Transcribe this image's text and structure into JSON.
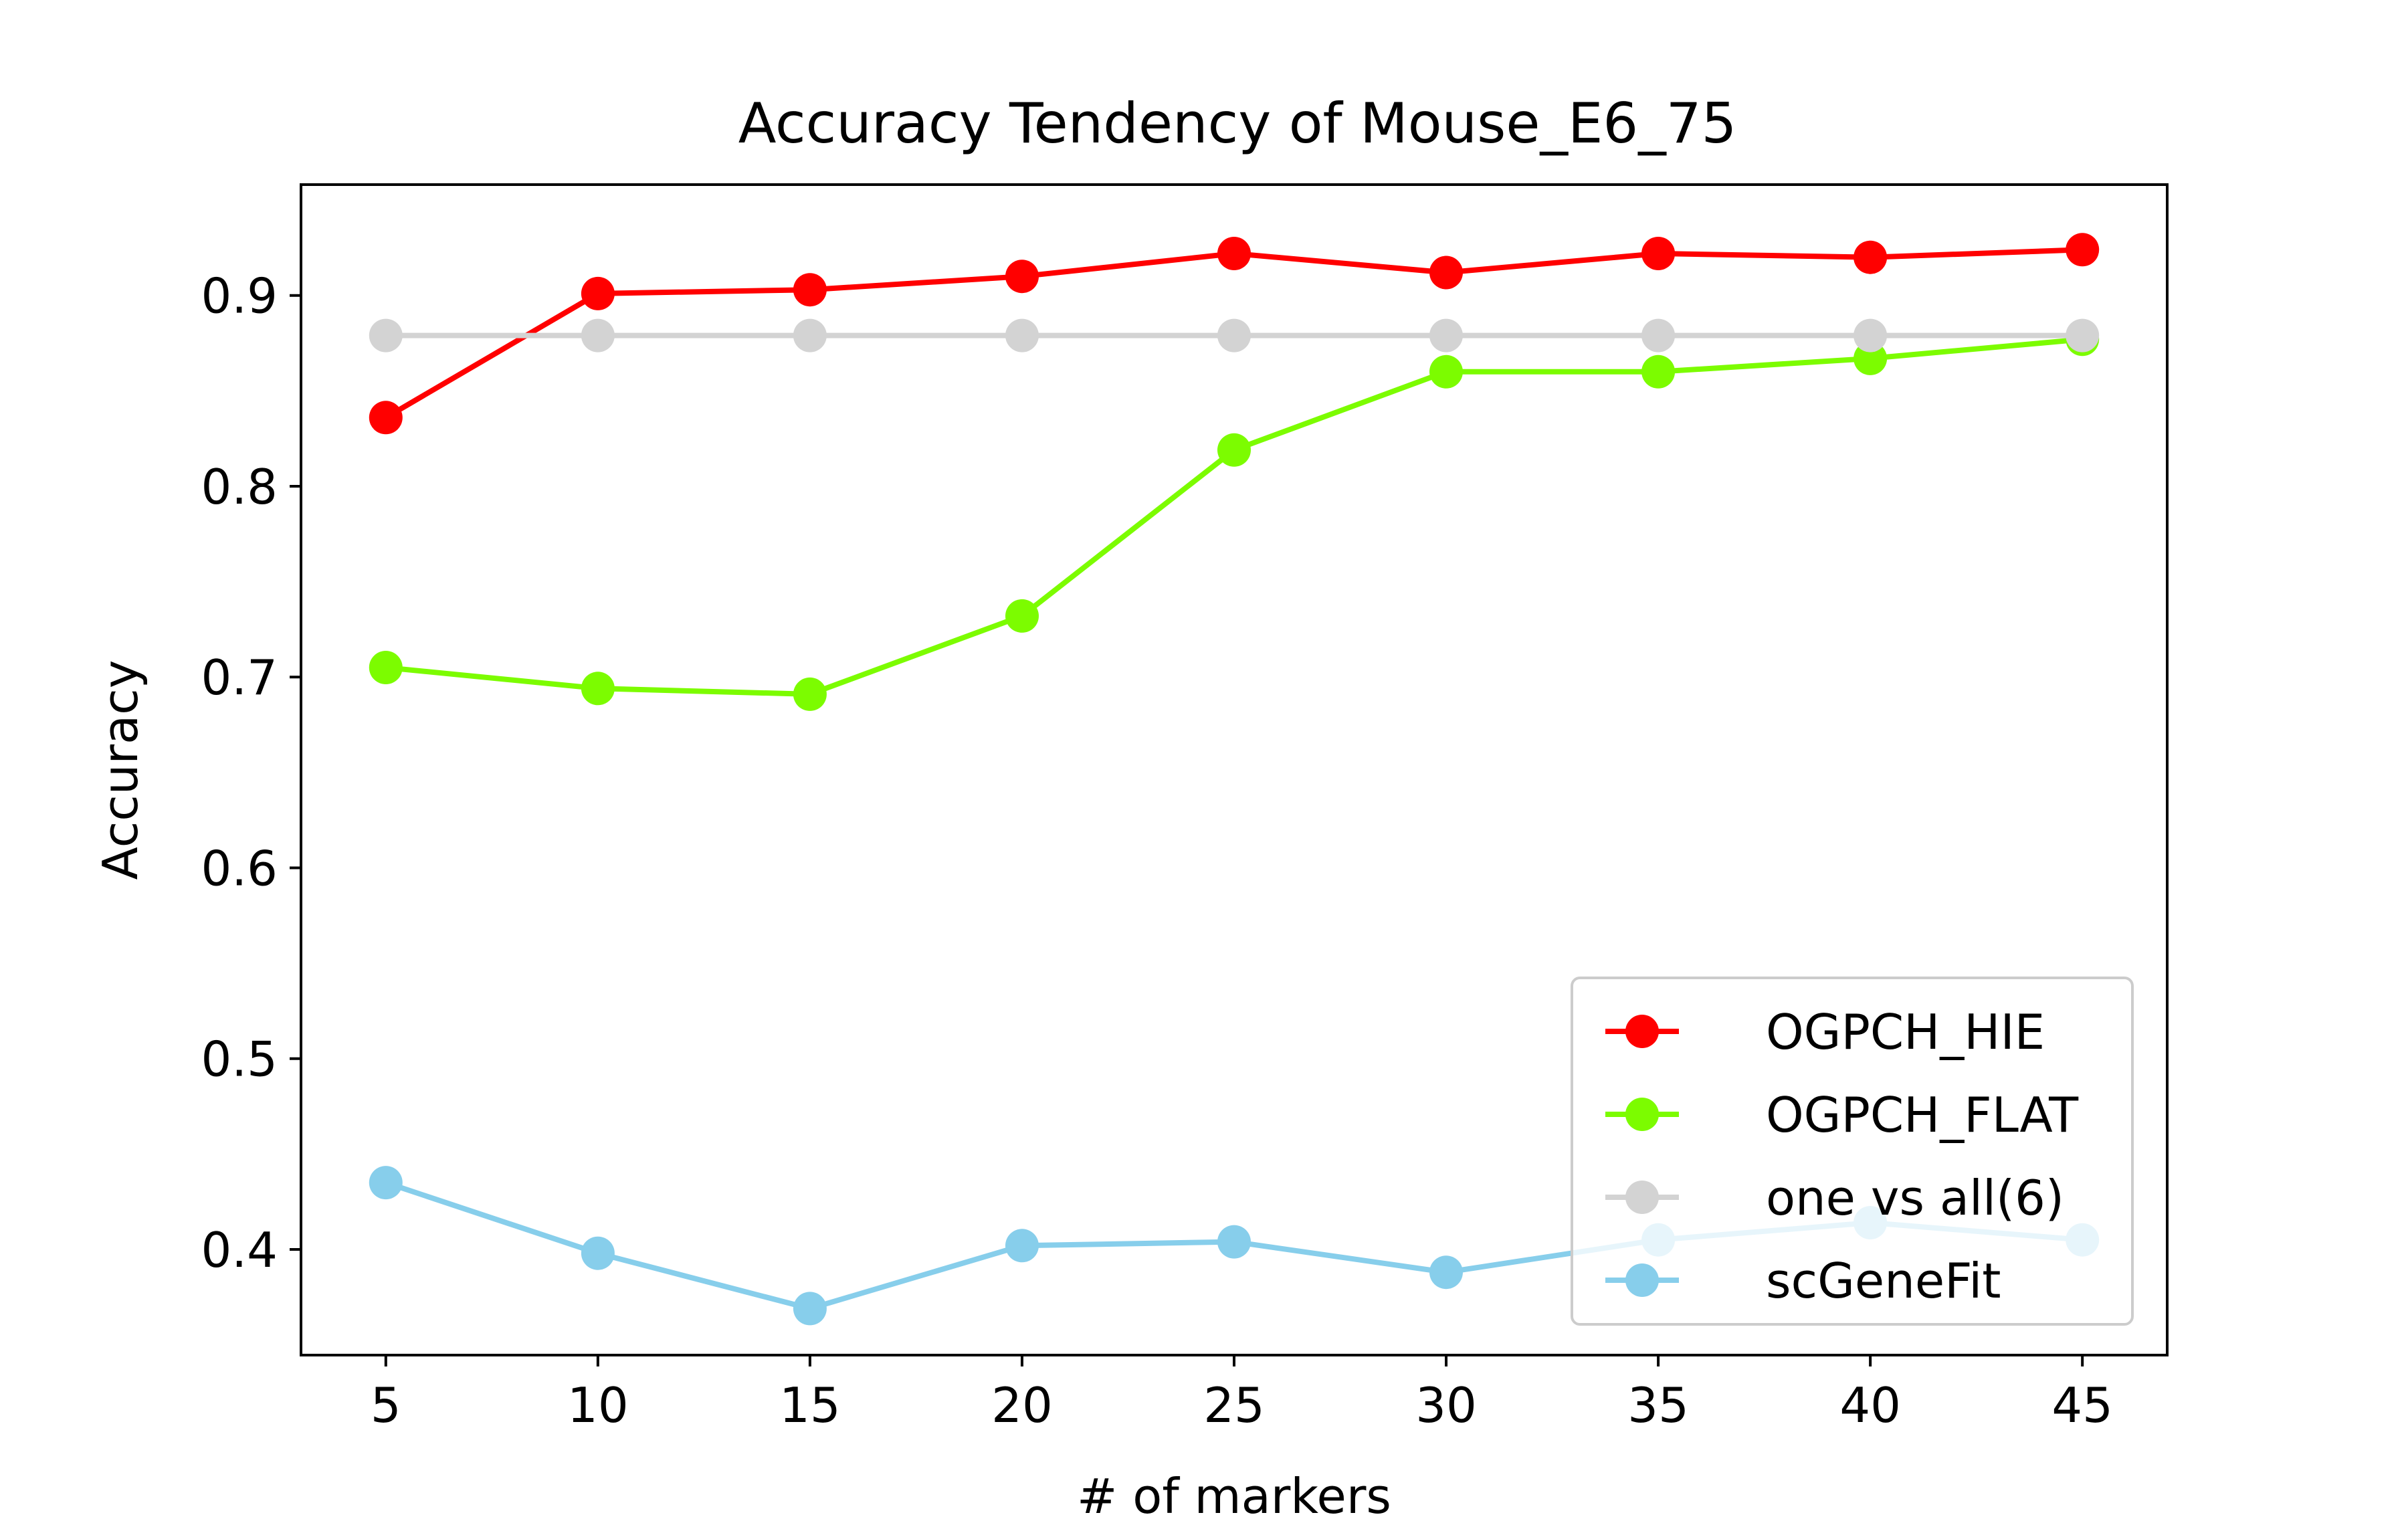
{
  "chart_data": {
    "type": "line",
    "title": "Accuracy Tendency of Mouse_E6_75",
    "xlabel": "# of markers",
    "ylabel": "Accuracy",
    "x": [
      5,
      10,
      15,
      20,
      25,
      30,
      35,
      40,
      45
    ],
    "xticks": [
      "5",
      "10",
      "15",
      "20",
      "25",
      "30",
      "35",
      "40",
      "45"
    ],
    "yticks": [
      {
        "value": 0.4,
        "label": "0.4"
      },
      {
        "value": 0.5,
        "label": "0.5"
      },
      {
        "value": 0.6,
        "label": "0.6"
      },
      {
        "value": 0.7,
        "label": "0.7"
      },
      {
        "value": 0.8,
        "label": "0.8"
      },
      {
        "value": 0.9,
        "label": "0.9"
      }
    ],
    "xlim": [
      3.0,
      47.0
    ],
    "ylim": [
      0.3446,
      0.9581
    ],
    "grid": false,
    "legend": "lower right",
    "series": [
      {
        "name": "OGPCH_HIE",
        "color": "#ff0000",
        "values": [
          0.836,
          0.901,
          0.903,
          0.91,
          0.922,
          0.912,
          0.922,
          0.92,
          0.924
        ]
      },
      {
        "name": "OGPCH_FLAT",
        "color": "#7cfc00",
        "values": [
          0.705,
          0.694,
          0.691,
          0.732,
          0.819,
          0.86,
          0.86,
          0.867,
          0.877
        ]
      },
      {
        "name": "one vs all(6)",
        "color": "#d3d3d3",
        "values": [
          0.879,
          0.879,
          0.879,
          0.879,
          0.879,
          0.879,
          0.879,
          0.879,
          0.879
        ]
      },
      {
        "name": "scGeneFit",
        "color": "#87ceeb",
        "values": [
          0.435,
          0.398,
          0.369,
          0.402,
          0.404,
          0.388,
          0.405,
          0.414,
          0.405
        ]
      }
    ]
  }
}
